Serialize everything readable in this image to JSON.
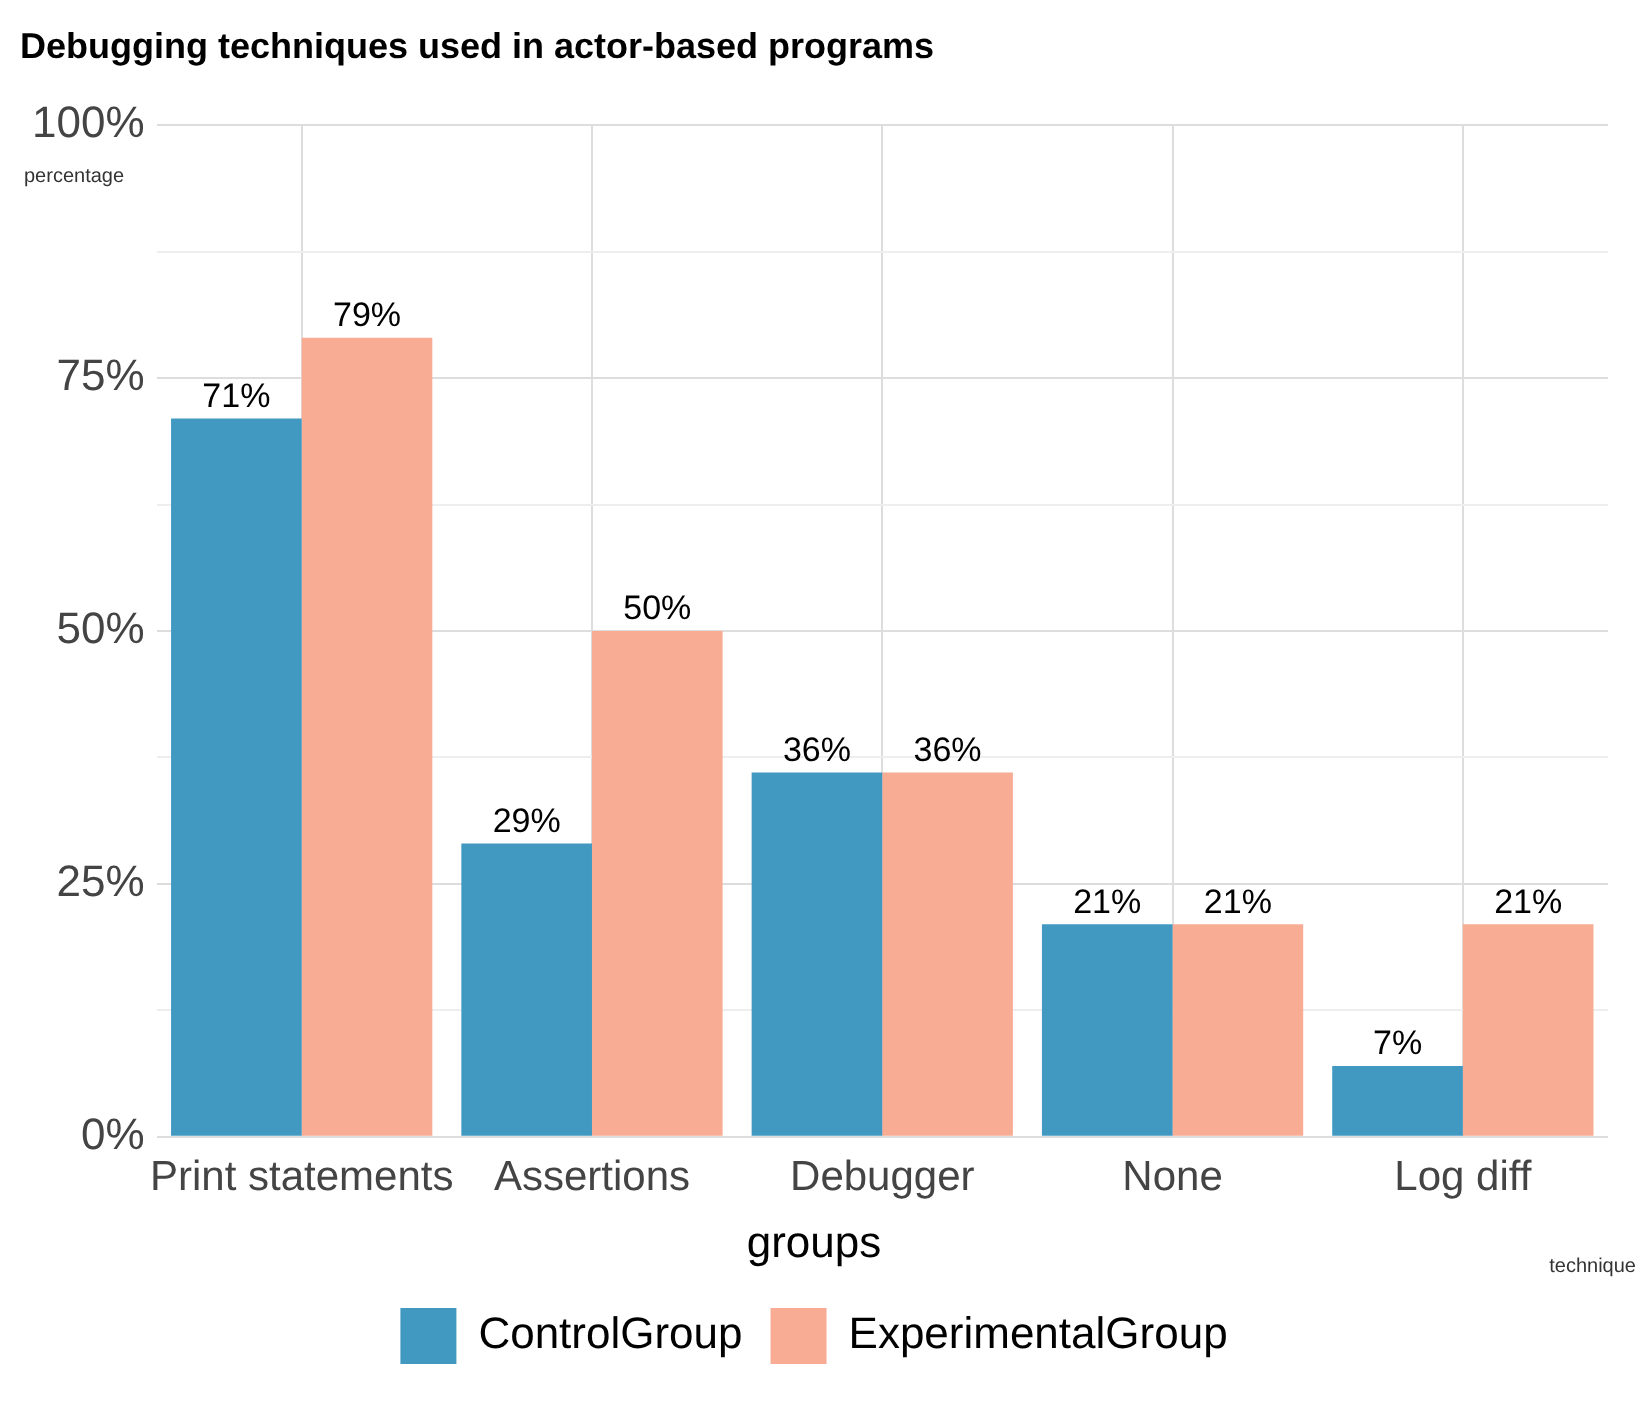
{
  "chart_data": {
    "type": "bar",
    "title": "Debugging techniques used in actor-based programs",
    "xlabel": "technique",
    "ylabel": "percentage",
    "legend_title": "groups",
    "categories": [
      "Print statements",
      "Assertions",
      "Debugger",
      "None",
      "Log diff"
    ],
    "series": [
      {
        "name": "ControlGroup",
        "color": "#4199c2",
        "values": [
          71,
          29,
          36,
          21,
          7
        ],
        "value_labels": [
          "71%",
          "29%",
          "36%",
          "21%",
          "7%"
        ]
      },
      {
        "name": "ExperimentalGroup",
        "color": "#f7ac93",
        "values": [
          79,
          50,
          36,
          21,
          21
        ],
        "value_labels": [
          "79%",
          "50%",
          "36%",
          "21%",
          "21%"
        ]
      }
    ],
    "ylim": [
      0,
      100
    ],
    "yticks": [
      {
        "value": 0,
        "label": "0%"
      },
      {
        "value": 12.5,
        "label": null
      },
      {
        "value": 25,
        "label": "25%"
      },
      {
        "value": 37.5,
        "label": null
      },
      {
        "value": 50,
        "label": "50%"
      },
      {
        "value": 62.5,
        "label": null
      },
      {
        "value": 75,
        "label": "75%"
      },
      {
        "value": 87.5,
        "label": null
      },
      {
        "value": 100,
        "label": "100%"
      }
    ],
    "grid": true,
    "legend": "bottom"
  }
}
